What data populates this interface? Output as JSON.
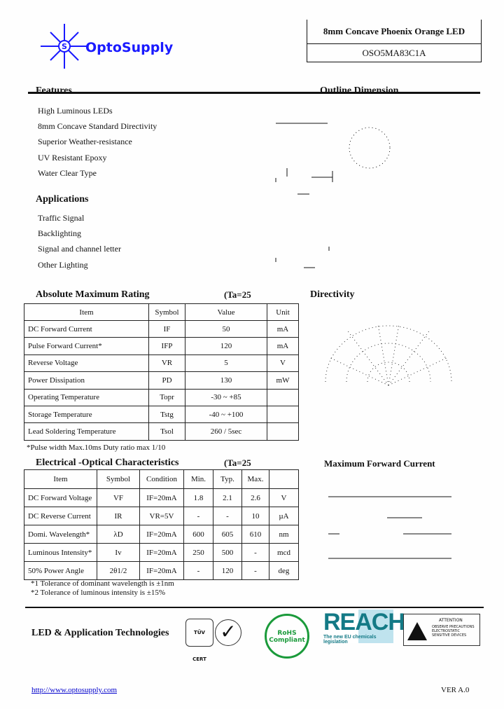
{
  "header": {
    "logo_text": "OptoSupply",
    "product_title": "8mm Concave Phoenix Orange LED",
    "part_number": "OSO5MA83C1A",
    "brand_color": "#1a1aff"
  },
  "features": {
    "title": "Features",
    "items": [
      "High Luminous LEDs",
      "8mm Concave Standard Directivity",
      "Superior Weather-resistance",
      "UV Resistant Epoxy",
      "Water Clear Type"
    ]
  },
  "applications": {
    "title": "Applications",
    "items": [
      "Traffic Signal",
      "Backlighting",
      "Signal and channel letter",
      "Other Lighting"
    ]
  },
  "outline": {
    "title": "Outline Dimension"
  },
  "directivity": {
    "title": "Directivity"
  },
  "max_current": {
    "title": "Maximum Forward Current"
  },
  "abs_max": {
    "title": "Absolute Maximum Rating",
    "condition": "(Ta=25",
    "headers": [
      "Item",
      "Symbol",
      "Value",
      "Unit"
    ],
    "rows": [
      [
        "DC Forward Current",
        "IF",
        "50",
        "mA"
      ],
      [
        "Pulse Forward Current*",
        "IFP",
        "120",
        "mA"
      ],
      [
        "Reverse Voltage",
        "VR",
        "5",
        "V"
      ],
      [
        "Power Dissipation",
        "PD",
        "130",
        "mW"
      ],
      [
        "Operating Temperature",
        "Topr",
        "-30 ~ +85",
        ""
      ],
      [
        "Storage Temperature",
        "Tstg",
        "-40 ~ +100",
        ""
      ],
      [
        "Lead Soldering Temperature",
        "Tsol",
        "260 / 5sec",
        ""
      ]
    ],
    "note": "*Pulse width Max.10ms Duty ratio max 1/10"
  },
  "elec": {
    "title": "Electrical -Optical Characteristics",
    "condition": "(Ta=25",
    "headers": [
      "Item",
      "Symbol",
      "Condition",
      "Min.",
      "Typ.",
      "Max.",
      ""
    ],
    "rows": [
      [
        "DC Forward Voltage",
        "VF",
        "IF=20mA",
        "1.8",
        "2.1",
        "2.6",
        "V"
      ],
      [
        "DC Reverse Current",
        "IR",
        "VR=5V",
        "-",
        "-",
        "10",
        "µA"
      ],
      [
        "Domi. Wavelength*",
        "λD",
        "IF=20mA",
        "600",
        "605",
        "610",
        "nm"
      ],
      [
        "Luminous Intensity*",
        "Iv",
        "IF=20mA",
        "250",
        "500",
        "-",
        "mcd"
      ],
      [
        "50% Power Angle",
        "2θ1/2",
        "IF=20mA",
        "-",
        "120",
        "-",
        "deg"
      ]
    ],
    "notes": [
      "*1 Tolerance of dominant wavelength is ±1nm",
      "*2 Tolerance of luminous intensity is ±15%"
    ]
  },
  "footer": {
    "company": "LED & Application Technologies",
    "tuv": "TÜV CERT",
    "rohs": "RoHS Compliant",
    "reach": "REACH",
    "reach_sub": "The new EU chemicals legislation",
    "attention": "ATTENTION",
    "attention_text": "OBSERVE PRECAUTIONS ELECTROSTATIC SENSITIVE DEVICES",
    "url": "http://www.optosupply.com",
    "version": "VER A.0"
  }
}
